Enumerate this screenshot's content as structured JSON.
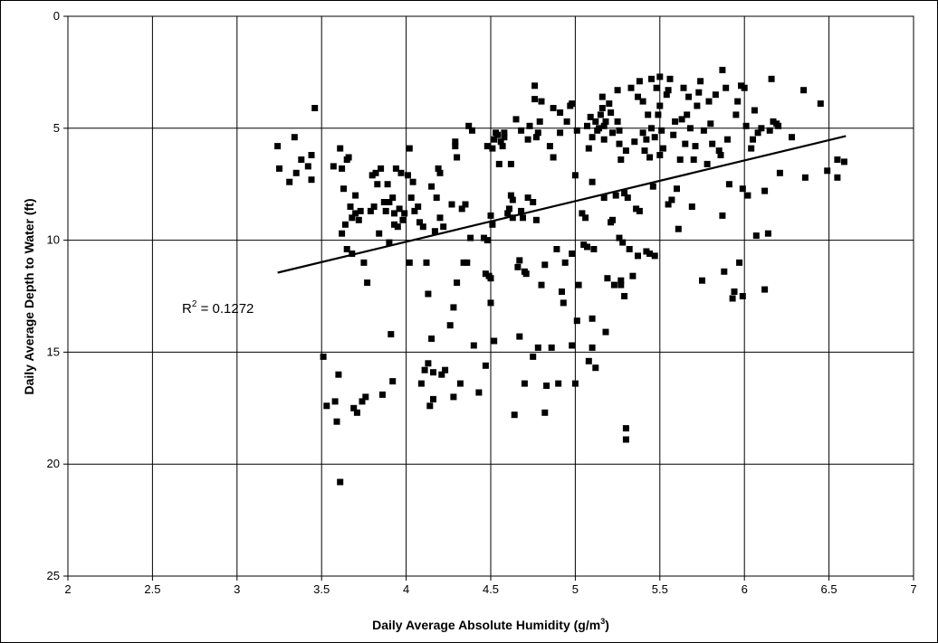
{
  "chart_data": {
    "type": "scatter",
    "title": "",
    "xlabel": "Daily Average Absolute Humidity (g/m",
    "xlabel_sup": "3",
    "xlabel_end": ")",
    "ylabel": "Daily Average Depth to Water (ft)",
    "xlim": [
      2,
      7
    ],
    "ylim": [
      0,
      25
    ],
    "y_inverted": true,
    "x_ticks": [
      "2",
      "2.5",
      "3",
      "3.5",
      "4",
      "4.5",
      "5",
      "5.5",
      "6",
      "6.5",
      "7"
    ],
    "y_ticks": [
      "0",
      "5",
      "10",
      "15",
      "20",
      "25"
    ],
    "grid": true,
    "legend": "none",
    "colors": {
      "marker": "#000000",
      "grid": "#000000",
      "trendline": "#000000"
    },
    "trendline": {
      "x": [
        3.24,
        6.6
      ],
      "y": [
        11.45,
        5.35
      ]
    },
    "annotation": {
      "prefix": "R",
      "sup": "2",
      "suffix": " = 0.1272",
      "x": 3.48,
      "y": 13.1
    },
    "points": [
      [
        3.24,
        5.8
      ],
      [
        3.25,
        6.8
      ],
      [
        3.31,
        7.4
      ],
      [
        3.34,
        5.4
      ],
      [
        3.35,
        7.0
      ],
      [
        3.38,
        6.4
      ],
      [
        3.42,
        6.7
      ],
      [
        3.44,
        6.2
      ],
      [
        3.44,
        7.3
      ],
      [
        3.46,
        4.1
      ],
      [
        3.51,
        15.2
      ],
      [
        3.53,
        17.4
      ],
      [
        3.57,
        6.7
      ],
      [
        3.58,
        17.2
      ],
      [
        3.59,
        18.1
      ],
      [
        3.6,
        16.0
      ],
      [
        3.61,
        20.8
      ],
      [
        3.61,
        5.9
      ],
      [
        3.62,
        6.8
      ],
      [
        3.62,
        9.7
      ],
      [
        3.63,
        7.7
      ],
      [
        3.64,
        9.3
      ],
      [
        3.65,
        6.4
      ],
      [
        3.65,
        10.4
      ],
      [
        3.66,
        6.3
      ],
      [
        3.67,
        8.5
      ],
      [
        3.68,
        9.0
      ],
      [
        3.68,
        10.6
      ],
      [
        3.69,
        17.5
      ],
      [
        3.7,
        8.0
      ],
      [
        3.7,
        8.8
      ],
      [
        3.71,
        17.7
      ],
      [
        3.72,
        9.1
      ],
      [
        3.73,
        8.7
      ],
      [
        3.74,
        17.2
      ],
      [
        3.75,
        11.0
      ],
      [
        3.76,
        17.0
      ],
      [
        3.77,
        11.9
      ],
      [
        3.79,
        8.7
      ],
      [
        3.8,
        7.1
      ],
      [
        3.81,
        8.5
      ],
      [
        3.82,
        7.0
      ],
      [
        3.83,
        7.5
      ],
      [
        3.84,
        9.7
      ],
      [
        3.85,
        6.8
      ],
      [
        3.86,
        16.9
      ],
      [
        3.87,
        8.3
      ],
      [
        3.88,
        8.7
      ],
      [
        3.89,
        7.5
      ],
      [
        3.9,
        8.3
      ],
      [
        3.9,
        10.1
      ],
      [
        3.91,
        14.2
      ],
      [
        3.92,
        8.1
      ],
      [
        3.92,
        16.3
      ],
      [
        3.93,
        9.3
      ],
      [
        3.93,
        8.8
      ],
      [
        3.94,
        6.8
      ],
      [
        3.95,
        9.4
      ],
      [
        3.96,
        8.6
      ],
      [
        3.97,
        7.0
      ],
      [
        3.98,
        9.1
      ],
      [
        3.99,
        8.8
      ],
      [
        4.01,
        7.1
      ],
      [
        4.02,
        11.0
      ],
      [
        4.02,
        5.9
      ],
      [
        4.03,
        8.1
      ],
      [
        4.04,
        7.4
      ],
      [
        4.05,
        8.7
      ],
      [
        4.07,
        8.5
      ],
      [
        4.08,
        9.2
      ],
      [
        4.09,
        16.4
      ],
      [
        4.1,
        9.4
      ],
      [
        4.11,
        15.8
      ],
      [
        4.12,
        11.0
      ],
      [
        4.13,
        15.5
      ],
      [
        4.13,
        12.4
      ],
      [
        4.14,
        17.4
      ],
      [
        4.15,
        7.6
      ],
      [
        4.15,
        14.4
      ],
      [
        4.16,
        15.9
      ],
      [
        4.16,
        17.1
      ],
      [
        4.17,
        9.6
      ],
      [
        4.18,
        8.1
      ],
      [
        4.19,
        6.8
      ],
      [
        4.2,
        9.0
      ],
      [
        4.2,
        7.0
      ],
      [
        4.21,
        16.0
      ],
      [
        4.22,
        9.4
      ],
      [
        4.23,
        15.8
      ],
      [
        4.26,
        13.8
      ],
      [
        4.27,
        8.4
      ],
      [
        4.28,
        13.0
      ],
      [
        4.28,
        17.0
      ],
      [
        4.29,
        5.6
      ],
      [
        4.29,
        5.8
      ],
      [
        4.3,
        6.3
      ],
      [
        4.3,
        11.9
      ],
      [
        4.32,
        16.4
      ],
      [
        4.33,
        8.6
      ],
      [
        4.34,
        11.0
      ],
      [
        4.35,
        8.4
      ],
      [
        4.36,
        11.0
      ],
      [
        4.37,
        4.9
      ],
      [
        4.38,
        9.9
      ],
      [
        4.39,
        5.1
      ],
      [
        4.4,
        14.7
      ],
      [
        4.43,
        16.8
      ],
      [
        4.46,
        9.9
      ],
      [
        4.47,
        11.5
      ],
      [
        4.47,
        15.6
      ],
      [
        4.48,
        5.8
      ],
      [
        4.48,
        10.0
      ],
      [
        4.49,
        11.6
      ],
      [
        4.5,
        8.9
      ],
      [
        4.5,
        11.7
      ],
      [
        4.5,
        12.8
      ],
      [
        4.51,
        5.9
      ],
      [
        4.51,
        9.3
      ],
      [
        4.52,
        5.5
      ],
      [
        4.52,
        14.5
      ],
      [
        4.53,
        5.2
      ],
      [
        4.54,
        5.3
      ],
      [
        4.55,
        6.6
      ],
      [
        4.56,
        5.6
      ],
      [
        4.57,
        5.8
      ],
      [
        4.58,
        5.4
      ],
      [
        4.58,
        5.2
      ],
      [
        4.6,
        8.8
      ],
      [
        4.61,
        8.6
      ],
      [
        4.62,
        6.6
      ],
      [
        4.62,
        8.0
      ],
      [
        4.63,
        8.2
      ],
      [
        4.63,
        9.0
      ],
      [
        4.64,
        17.8
      ],
      [
        4.65,
        4.6
      ],
      [
        4.66,
        11.2
      ],
      [
        4.67,
        14.3
      ],
      [
        4.67,
        10.9
      ],
      [
        4.68,
        8.7
      ],
      [
        4.68,
        5.1
      ],
      [
        4.69,
        9.0
      ],
      [
        4.7,
        11.4
      ],
      [
        4.7,
        16.4
      ],
      [
        4.71,
        11.5
      ],
      [
        4.72,
        5.5
      ],
      [
        4.72,
        8.1
      ],
      [
        4.73,
        4.9
      ],
      [
        4.75,
        15.2
      ],
      [
        4.75,
        8.3
      ],
      [
        4.76,
        3.1
      ],
      [
        4.76,
        3.7
      ],
      [
        4.77,
        5.4
      ],
      [
        4.77,
        9.1
      ],
      [
        4.78,
        5.2
      ],
      [
        4.78,
        14.8
      ],
      [
        4.79,
        4.7
      ],
      [
        4.8,
        3.8
      ],
      [
        4.8,
        12.0
      ],
      [
        4.82,
        17.7
      ],
      [
        4.82,
        11.1
      ],
      [
        4.83,
        16.5
      ],
      [
        4.85,
        5.8
      ],
      [
        4.86,
        14.8
      ],
      [
        4.87,
        4.1
      ],
      [
        4.87,
        6.3
      ],
      [
        4.89,
        10.4
      ],
      [
        4.9,
        16.4
      ],
      [
        4.91,
        4.3
      ],
      [
        4.91,
        5.2
      ],
      [
        4.92,
        12.3
      ],
      [
        4.93,
        12.8
      ],
      [
        4.94,
        11.0
      ],
      [
        4.95,
        4.7
      ],
      [
        4.97,
        4.0
      ],
      [
        4.98,
        3.9
      ],
      [
        4.98,
        10.6
      ],
      [
        4.98,
        14.7
      ],
      [
        5.0,
        16.4
      ],
      [
        5.0,
        7.1
      ],
      [
        5.01,
        5.1
      ],
      [
        5.01,
        13.6
      ],
      [
        5.02,
        12.0
      ],
      [
        5.04,
        8.8
      ],
      [
        5.05,
        10.2
      ],
      [
        5.06,
        9.0
      ],
      [
        5.07,
        10.3
      ],
      [
        5.07,
        4.9
      ],
      [
        5.08,
        15.4
      ],
      [
        5.08,
        5.9
      ],
      [
        5.09,
        4.5
      ],
      [
        5.1,
        14.8
      ],
      [
        5.1,
        5.4
      ],
      [
        5.1,
        13.5
      ],
      [
        5.1,
        7.4
      ],
      [
        5.11,
        10.4
      ],
      [
        5.12,
        4.7
      ],
      [
        5.12,
        15.7
      ],
      [
        5.13,
        5.1
      ],
      [
        5.14,
        5.0
      ],
      [
        5.15,
        4.4
      ],
      [
        5.16,
        3.6
      ],
      [
        5.16,
        4.1
      ],
      [
        5.17,
        4.9
      ],
      [
        5.17,
        5.5
      ],
      [
        5.17,
        8.1
      ],
      [
        5.18,
        14.1
      ],
      [
        5.18,
        4.7
      ],
      [
        5.19,
        11.7
      ],
      [
        5.2,
        3.9
      ],
      [
        5.21,
        4.3
      ],
      [
        5.21,
        9.2
      ],
      [
        5.22,
        5.2
      ],
      [
        5.22,
        9.1
      ],
      [
        5.23,
        12.0
      ],
      [
        5.24,
        8.0
      ],
      [
        5.25,
        3.3
      ],
      [
        5.25,
        4.7
      ],
      [
        5.26,
        5.1
      ],
      [
        5.26,
        5.7
      ],
      [
        5.26,
        9.9
      ],
      [
        5.27,
        11.8
      ],
      [
        5.27,
        6.4
      ],
      [
        5.27,
        12.0
      ],
      [
        5.28,
        10.1
      ],
      [
        5.29,
        12.5
      ],
      [
        5.29,
        7.9
      ],
      [
        5.3,
        18.4
      ],
      [
        5.3,
        18.9
      ],
      [
        5.3,
        6.0
      ],
      [
        5.31,
        8.1
      ],
      [
        5.32,
        10.4
      ],
      [
        5.33,
        3.2
      ],
      [
        5.34,
        11.6
      ],
      [
        5.35,
        5.6
      ],
      [
        5.36,
        8.6
      ],
      [
        5.37,
        3.6
      ],
      [
        5.37,
        10.7
      ],
      [
        5.38,
        2.9
      ],
      [
        5.38,
        8.7
      ],
      [
        5.4,
        3.8
      ],
      [
        5.4,
        5.2
      ],
      [
        5.41,
        6.0
      ],
      [
        5.42,
        10.5
      ],
      [
        5.42,
        5.5
      ],
      [
        5.43,
        4.4
      ],
      [
        5.44,
        6.3
      ],
      [
        5.44,
        10.6
      ],
      [
        5.45,
        2.8
      ],
      [
        5.45,
        5.0
      ],
      [
        5.46,
        7.6
      ],
      [
        5.47,
        5.4
      ],
      [
        5.47,
        10.7
      ],
      [
        5.48,
        3.2
      ],
      [
        5.49,
        4.4
      ],
      [
        5.5,
        2.7
      ],
      [
        5.5,
        4.0
      ],
      [
        5.5,
        6.2
      ],
      [
        5.51,
        5.1
      ],
      [
        5.52,
        5.9
      ],
      [
        5.54,
        3.5
      ],
      [
        5.55,
        3.3
      ],
      [
        5.55,
        8.4
      ],
      [
        5.56,
        2.8
      ],
      [
        5.57,
        8.2
      ],
      [
        5.58,
        5.3
      ],
      [
        5.59,
        4.7
      ],
      [
        5.6,
        7.7
      ],
      [
        5.61,
        9.5
      ],
      [
        5.62,
        6.4
      ],
      [
        5.63,
        4.6
      ],
      [
        5.64,
        3.2
      ],
      [
        5.65,
        5.7
      ],
      [
        5.66,
        4.4
      ],
      [
        5.67,
        3.6
      ],
      [
        5.68,
        5.0
      ],
      [
        5.69,
        8.5
      ],
      [
        5.7,
        6.4
      ],
      [
        5.71,
        5.8
      ],
      [
        5.72,
        4.0
      ],
      [
        5.73,
        3.4
      ],
      [
        5.74,
        2.9
      ],
      [
        5.75,
        11.8
      ],
      [
        5.76,
        5.1
      ],
      [
        5.78,
        6.6
      ],
      [
        5.79,
        3.8
      ],
      [
        5.8,
        4.8
      ],
      [
        5.81,
        5.7
      ],
      [
        5.83,
        3.5
      ],
      [
        5.85,
        6.0
      ],
      [
        5.86,
        6.2
      ],
      [
        5.87,
        2.4
      ],
      [
        5.87,
        8.9
      ],
      [
        5.88,
        11.4
      ],
      [
        5.89,
        3.2
      ],
      [
        5.9,
        5.5
      ],
      [
        5.91,
        7.5
      ],
      [
        5.93,
        12.6
      ],
      [
        5.94,
        12.3
      ],
      [
        5.95,
        4.4
      ],
      [
        5.96,
        3.8
      ],
      [
        5.97,
        11.0
      ],
      [
        5.98,
        3.1
      ],
      [
        5.99,
        7.7
      ],
      [
        5.99,
        12.5
      ],
      [
        6.0,
        3.2
      ],
      [
        6.01,
        4.9
      ],
      [
        6.02,
        8.0
      ],
      [
        6.04,
        5.9
      ],
      [
        6.05,
        5.5
      ],
      [
        6.06,
        4.2
      ],
      [
        6.07,
        9.8
      ],
      [
        6.08,
        5.2
      ],
      [
        6.1,
        5.0
      ],
      [
        6.12,
        7.8
      ],
      [
        6.12,
        12.2
      ],
      [
        6.14,
        9.7
      ],
      [
        6.15,
        5.1
      ],
      [
        6.16,
        2.8
      ],
      [
        6.17,
        4.7
      ],
      [
        6.19,
        4.8
      ],
      [
        6.2,
        4.9
      ],
      [
        6.21,
        7.0
      ],
      [
        6.28,
        5.4
      ],
      [
        6.35,
        3.3
      ],
      [
        6.36,
        7.2
      ],
      [
        6.45,
        3.9
      ],
      [
        6.49,
        6.9
      ],
      [
        6.55,
        6.4
      ],
      [
        6.55,
        7.2
      ],
      [
        6.59,
        6.5
      ]
    ]
  }
}
